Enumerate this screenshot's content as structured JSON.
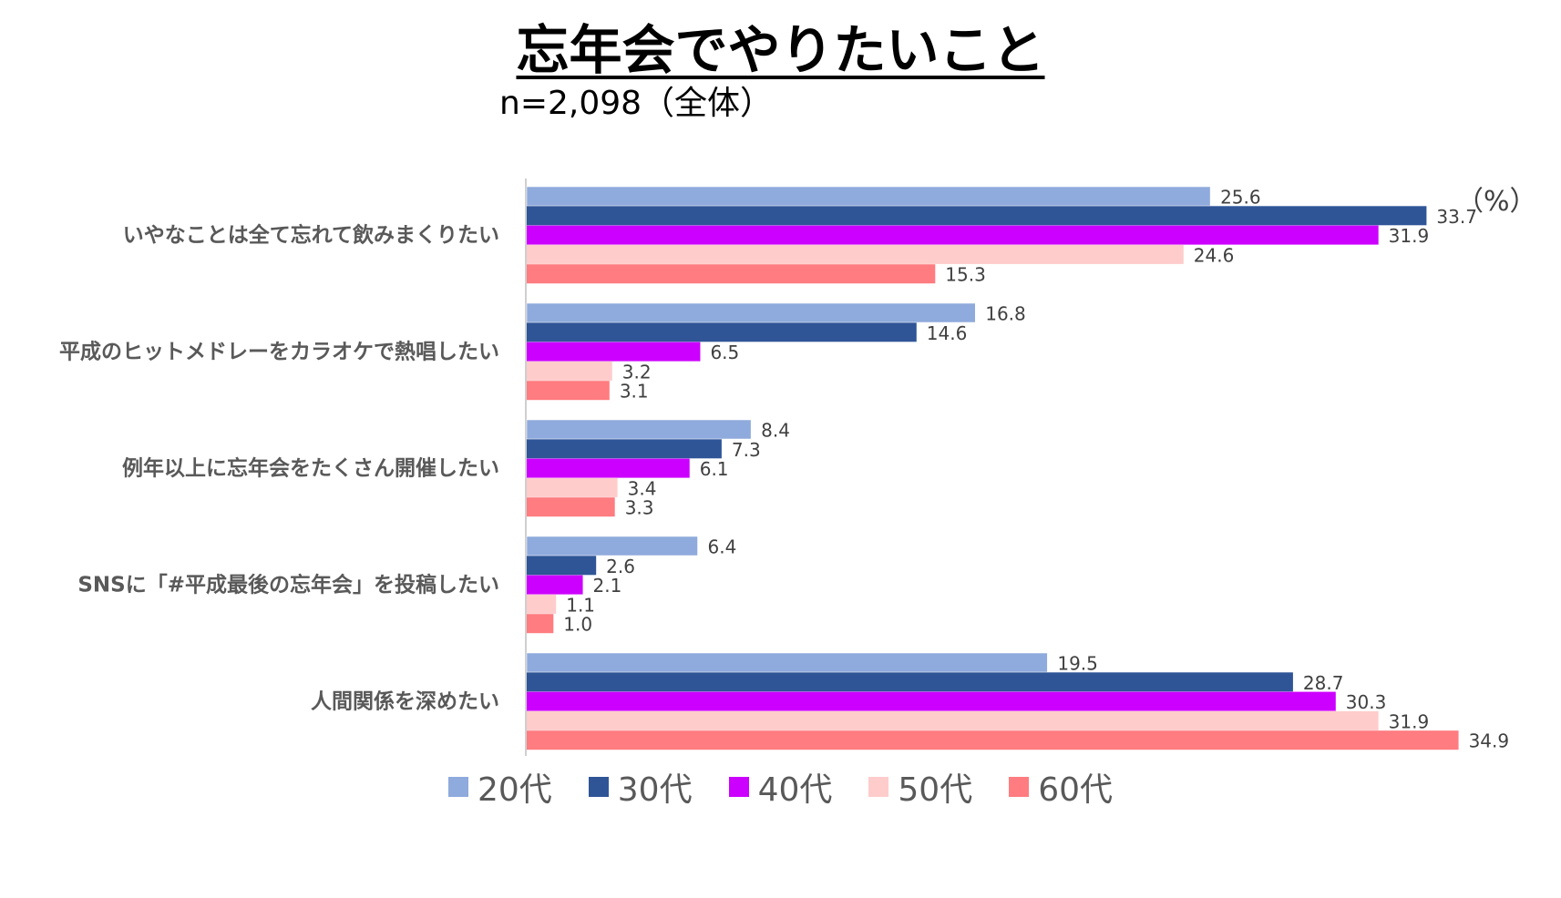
{
  "title": "忘年会でやりたいこと",
  "subtitle": "n=2,098（全体）",
  "unit_label": "（%）",
  "chart_data": {
    "type": "bar",
    "orientation": "horizontal",
    "categories": [
      "いやなことは全て忘れて飲みまくりたい",
      "平成のヒットメドレーをカラオケで熱唱したい",
      "例年以上に忘年会をたくさん開催したい",
      "SNSに「#平成最後の忘年会」を投稿したい",
      "人間関係を深めたい"
    ],
    "series": [
      {
        "name": "20代",
        "color": "#8FAADC",
        "values": [
          25.6,
          16.8,
          8.4,
          6.4,
          19.5
        ]
      },
      {
        "name": "30代",
        "color": "#2F5597",
        "values": [
          33.7,
          14.6,
          7.3,
          2.6,
          28.7
        ]
      },
      {
        "name": "40代",
        "color": "#CC00FF",
        "values": [
          31.9,
          6.5,
          6.1,
          2.1,
          30.3
        ]
      },
      {
        "name": "50代",
        "color": "#FFCCCC",
        "values": [
          24.6,
          3.2,
          3.4,
          1.1,
          31.9
        ]
      },
      {
        "name": "60代",
        "color": "#FF7C80",
        "values": [
          15.3,
          3.1,
          3.3,
          1.0,
          34.9
        ]
      }
    ],
    "xlim": [
      0,
      40
    ],
    "legend_position": "bottom",
    "data_labels": true,
    "grid": false
  }
}
